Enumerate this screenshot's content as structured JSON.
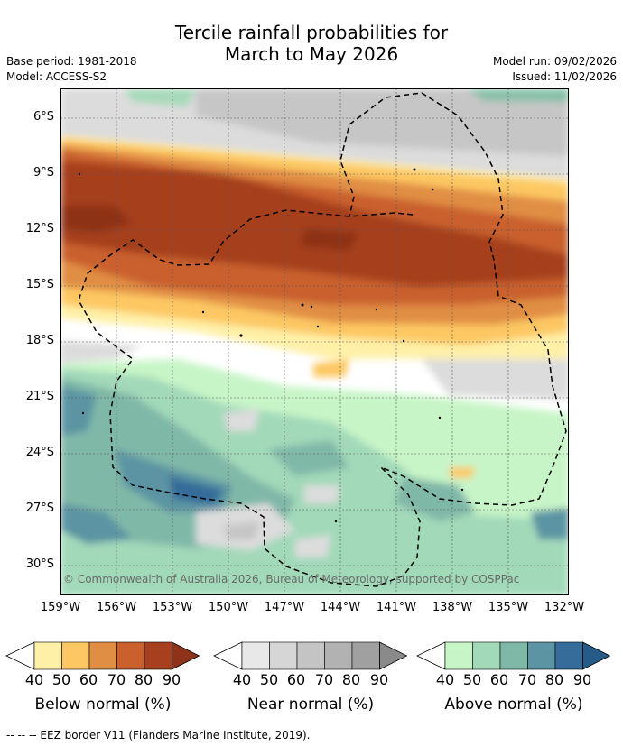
{
  "header": {
    "title_line1": "Tercile rainfall probabilities for",
    "title_line2": "March to May 2026",
    "base_period": "Base period: 1981-2018",
    "model": "Model: ACCESS-S2",
    "model_run": "Model run: 09/02/2026",
    "issued": "Issued: 11/02/2026"
  },
  "map": {
    "lat_labels": [
      "6°S",
      "9°S",
      "12°S",
      "15°S",
      "18°S",
      "21°S",
      "24°S",
      "27°S",
      "30°S"
    ],
    "lon_labels": [
      "159°W",
      "156°W",
      "153°W",
      "150°W",
      "147°W",
      "144°W",
      "141°W",
      "138°W",
      "135°W",
      "132°W"
    ],
    "copyright": "© Commonwealth of Australia 2026, Bureau of Meteorology, supported by COSPPac"
  },
  "legends": [
    {
      "label": "Below normal (%)",
      "ticks": [
        "40",
        "50",
        "60",
        "70",
        "80",
        "90"
      ],
      "colors": [
        "#fff0a8",
        "#fdc863",
        "#e18e45",
        "#c9602e",
        "#a6401f",
        "#8e3219"
      ]
    },
    {
      "label": "Near normal (%)",
      "ticks": [
        "40",
        "50",
        "60",
        "70",
        "80",
        "90"
      ],
      "colors": [
        "#e8e8e8",
        "#d6d6d6",
        "#c4c4c4",
        "#b2b2b2",
        "#a0a0a0",
        "#8a8a8a"
      ]
    },
    {
      "label": "Above normal (%)",
      "ticks": [
        "40",
        "50",
        "60",
        "70",
        "80",
        "90"
      ],
      "colors": [
        "#c8f5c8",
        "#a2d9b9",
        "#80b8a8",
        "#5c94a3",
        "#356c9a",
        "#265a87"
      ]
    }
  ],
  "footer": {
    "eez_note": "-- -- -- EEZ border V11 (Flanders Marine Institute, 2019)."
  }
}
